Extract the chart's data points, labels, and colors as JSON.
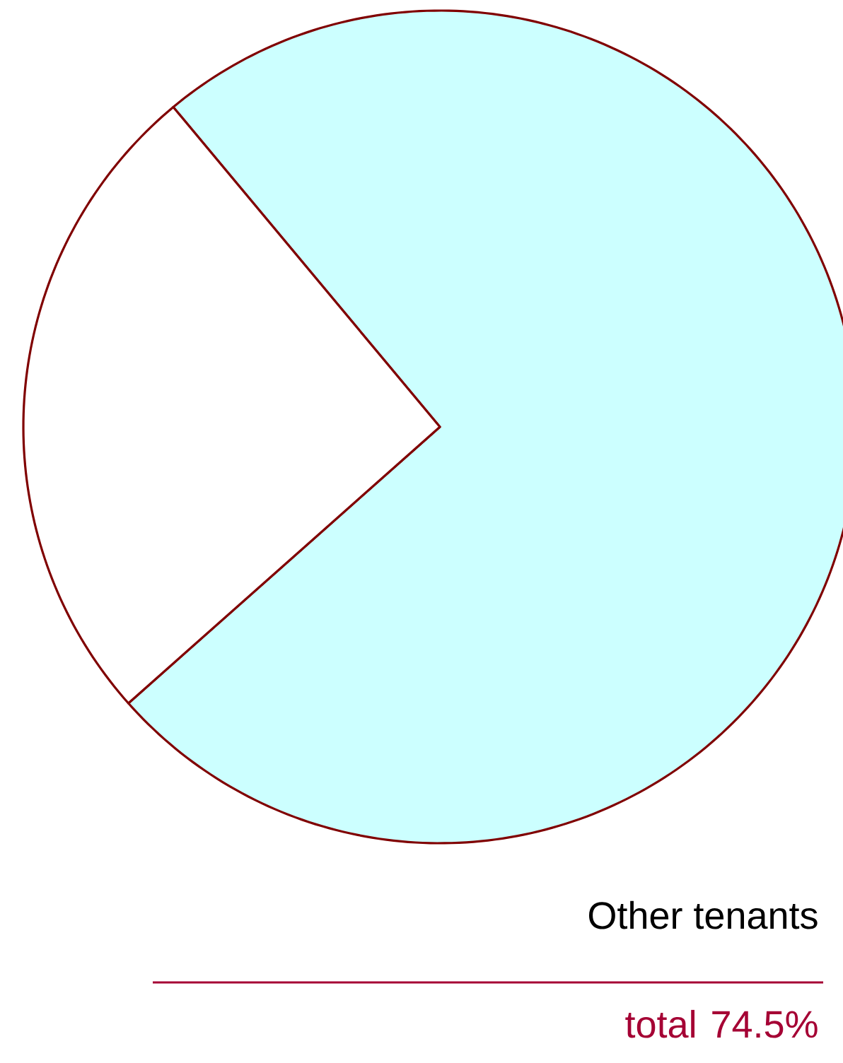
{
  "chart_data": {
    "type": "pie",
    "categories": [
      "Other tenants",
      null
    ],
    "values": [
      74.5,
      25.5
    ],
    "colors": [
      "#ccffff",
      "#ffffff"
    ],
    "value_labels": [
      "74.5%",
      null
    ],
    "annotations": [
      "total"
    ]
  }
}
